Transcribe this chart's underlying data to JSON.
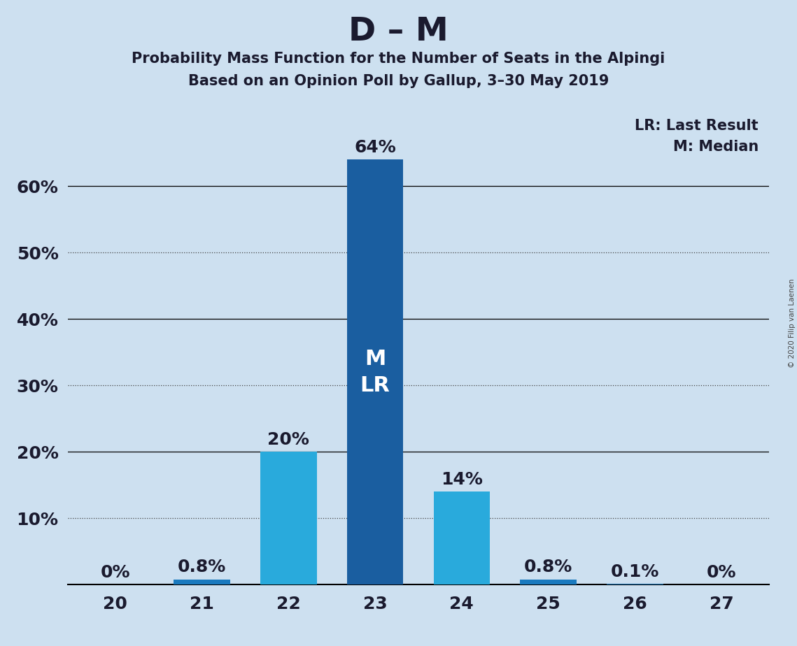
{
  "title": "D – M",
  "subtitle1": "Probability Mass Function for the Number of Seats in the Alpingi",
  "subtitle2": "Based on an Opinion Poll by Gallup, 3–30 May 2019",
  "copyright": "© 2020 Filip van Laenen",
  "legend_lr": "LR: Last Result",
  "legend_m": "M: Median",
  "categories": [
    20,
    21,
    22,
    23,
    24,
    25,
    26,
    27
  ],
  "values": [
    0.0,
    0.8,
    20.0,
    64.0,
    14.0,
    0.8,
    0.1,
    0.0
  ],
  "labels": [
    "0%",
    "0.8%",
    "20%",
    "64%",
    "14%",
    "0.8%",
    "0.1%",
    "0%"
  ],
  "bar_colors": [
    "#1a7abf",
    "#1a7abf",
    "#29aadc",
    "#1a5ea0",
    "#29aadc",
    "#1a7abf",
    "#1a7abf",
    "#1a7abf"
  ],
  "median_bar": 23,
  "lr_bar": 23,
  "background_color": "#cde0f0",
  "bar_label_color_outside": "#1a1a2e",
  "ylim": [
    0,
    72
  ],
  "yticks": [
    10,
    20,
    30,
    40,
    50,
    60
  ],
  "ytick_labels": [
    "10%",
    "20%",
    "30%",
    "40%",
    "50%",
    "60%"
  ],
  "solid_gridlines": [
    20,
    40,
    60
  ],
  "dotted_gridlines": [
    10,
    30,
    50
  ],
  "title_fontsize": 34,
  "subtitle_fontsize": 15,
  "axis_label_fontsize": 18,
  "bar_label_fontsize": 18,
  "inside_label_fontsize": 22,
  "legend_fontsize": 15
}
